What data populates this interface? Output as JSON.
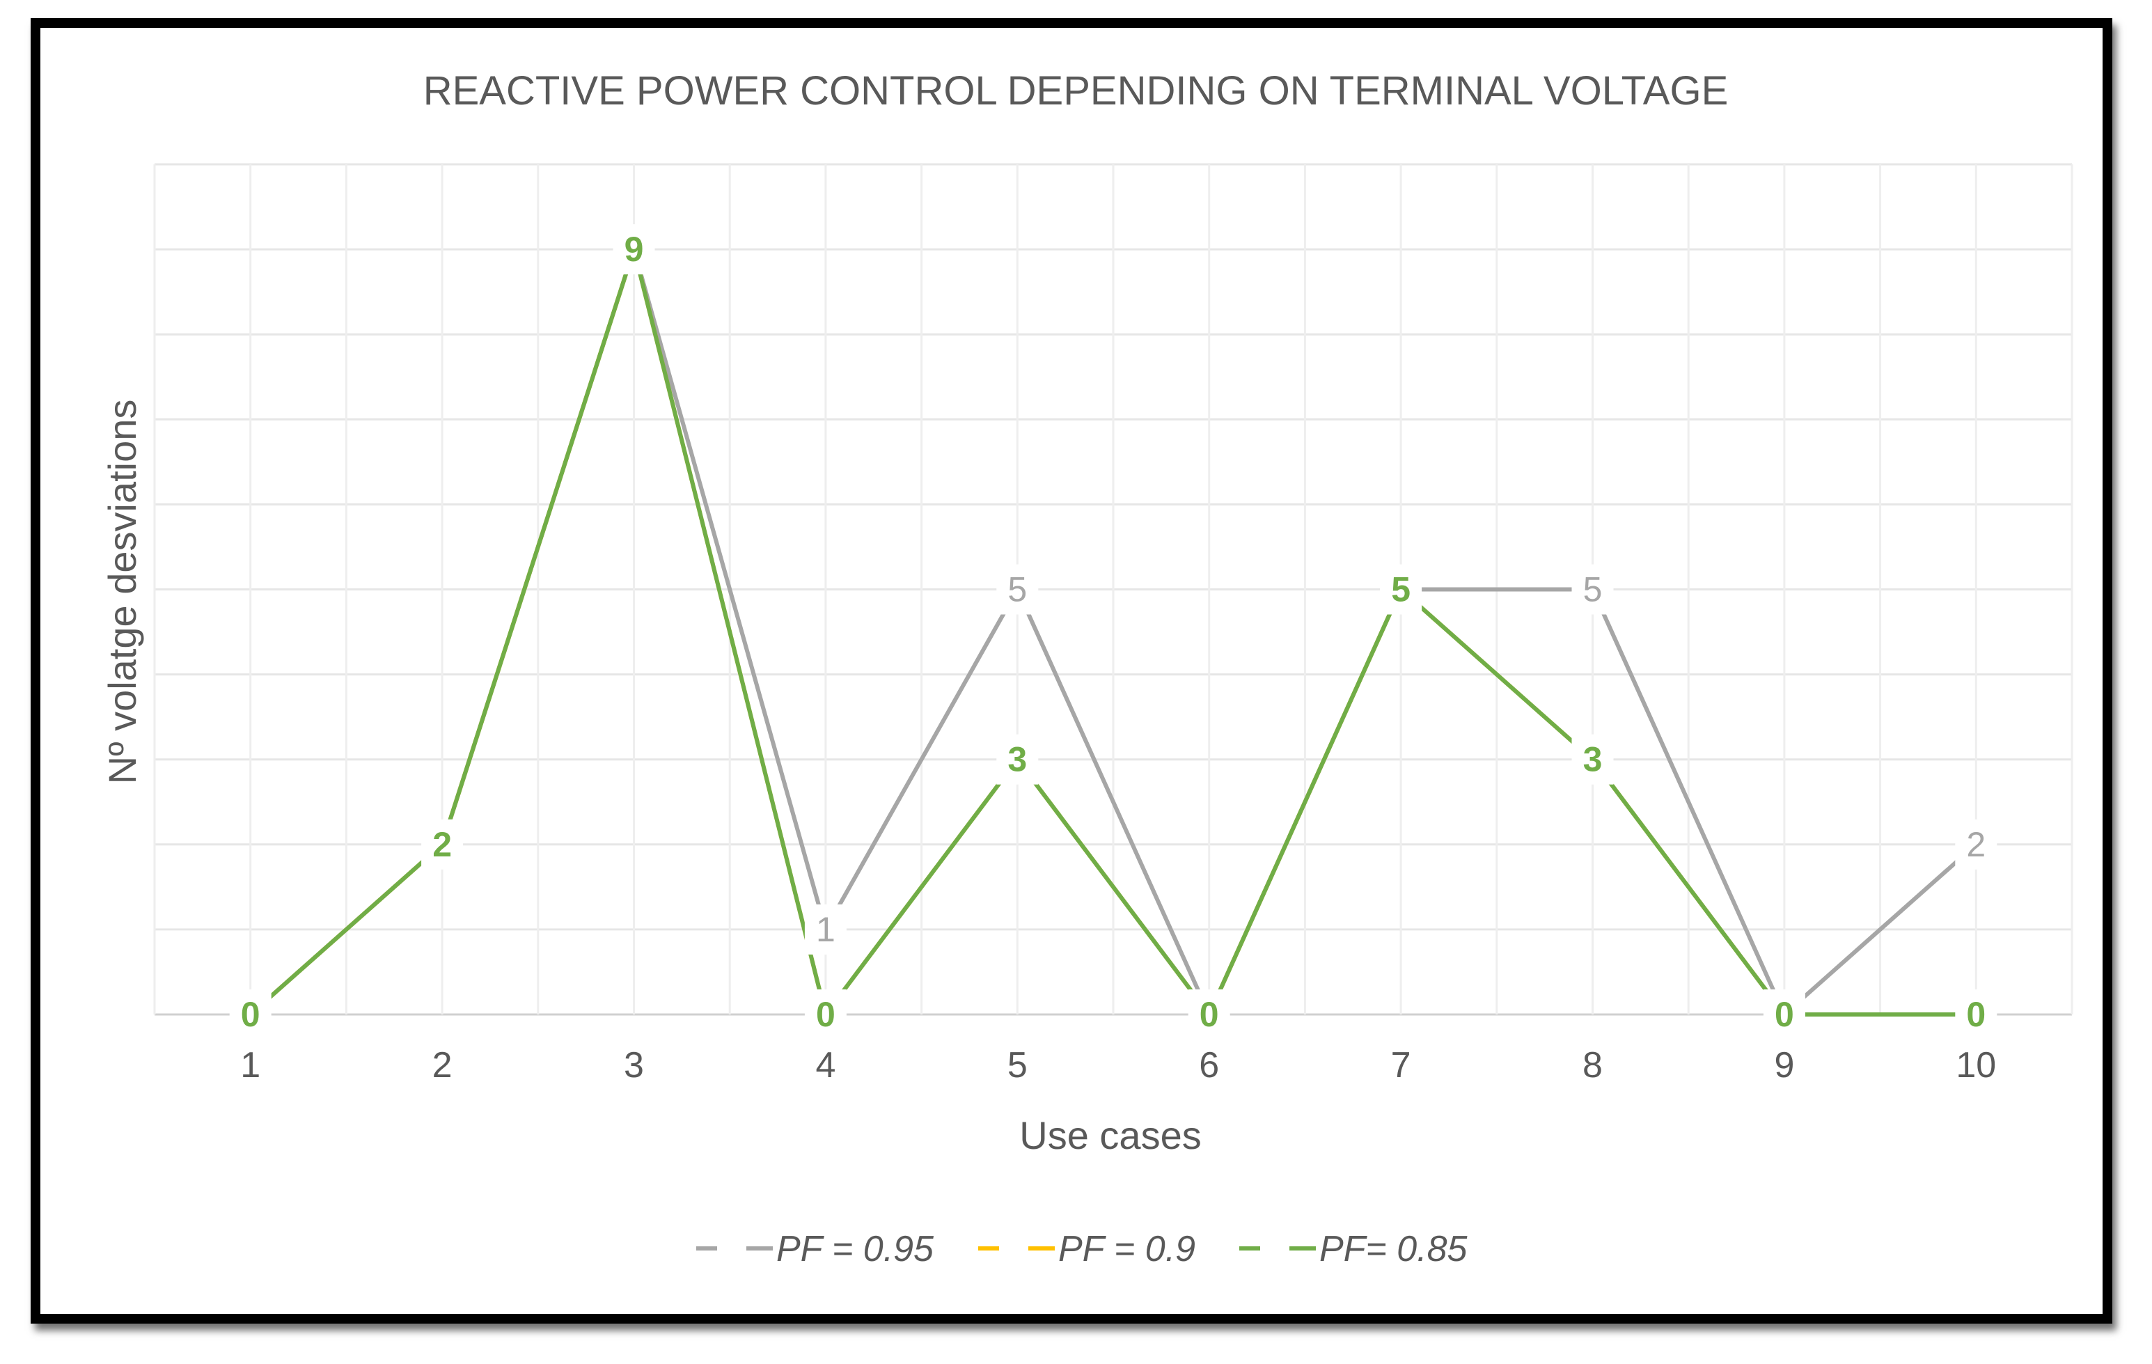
{
  "chart_data": {
    "type": "line",
    "title": "REACTIVE POWER CONTROL DEPENDING ON TERMINAL VOLTAGE",
    "xlabel": "Use cases",
    "ylabel": "Nº volatge desviations",
    "categories": [
      "1",
      "2",
      "3",
      "4",
      "5",
      "6",
      "7",
      "8",
      "9",
      "10"
    ],
    "ylim": [
      0,
      10
    ],
    "grid": true,
    "legend_position": "bottom",
    "series": [
      {
        "name": "PF = 0.95",
        "color": "#a6a6a6",
        "values": [
          0,
          2,
          9,
          1,
          5,
          0,
          5,
          5,
          0,
          2
        ]
      },
      {
        "name": "PF = 0.9",
        "color": "#ffc000",
        "values": [
          0,
          2,
          9,
          0,
          3,
          0,
          5,
          3,
          0,
          0
        ]
      },
      {
        "name": "PF= 0.85",
        "color": "#70ad47",
        "values": [
          0,
          2,
          9,
          0,
          3,
          0,
          5,
          3,
          0,
          0
        ]
      }
    ]
  }
}
